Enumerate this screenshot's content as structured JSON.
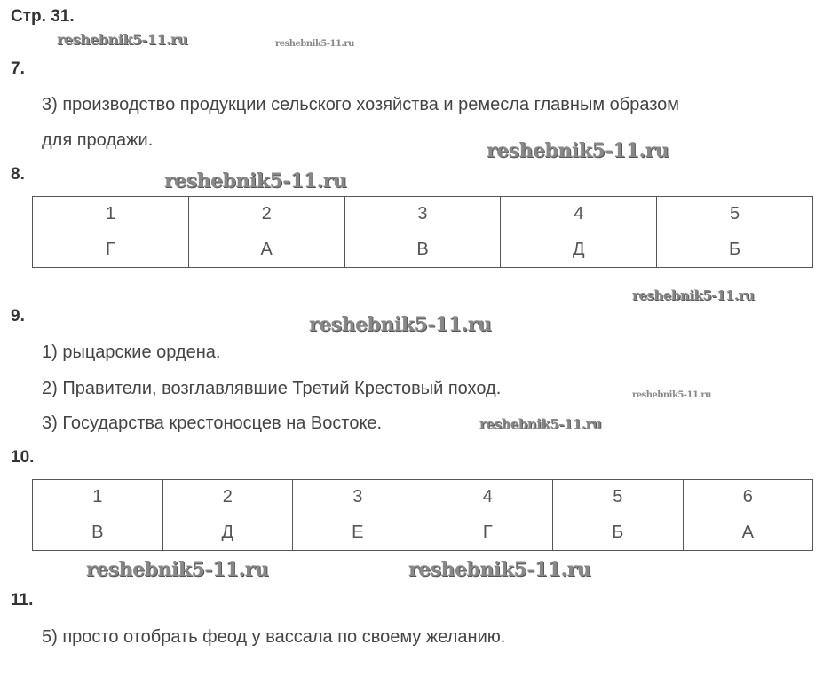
{
  "page_label": "Стр. 31.",
  "watermark": "reshebnik5-11.ru",
  "tasks": {
    "t7": {
      "number": "7.",
      "line1": "3) производство продукции сельского хозяйства и ремесла главным образом",
      "line2": "для продажи."
    },
    "t8": {
      "number": "8.",
      "header": [
        "1",
        "2",
        "3",
        "4",
        "5"
      ],
      "answers": [
        "Г",
        "А",
        "В",
        "Д",
        "Б"
      ]
    },
    "t9": {
      "number": "9.",
      "lines": [
        "1) рыцарские ордена.",
        "2) Правители, возглавлявшие Третий Крестовый поход.",
        "3) Государства крестоносцев на Востоке."
      ]
    },
    "t10": {
      "number": "10.",
      "header": [
        "1",
        "2",
        "3",
        "4",
        "5",
        "6"
      ],
      "answers": [
        "В",
        "Д",
        "Е",
        "Г",
        "Б",
        "А"
      ]
    },
    "t11": {
      "number": "11.",
      "line1": "5) просто отобрать феод у вассала по своему желанию."
    }
  }
}
